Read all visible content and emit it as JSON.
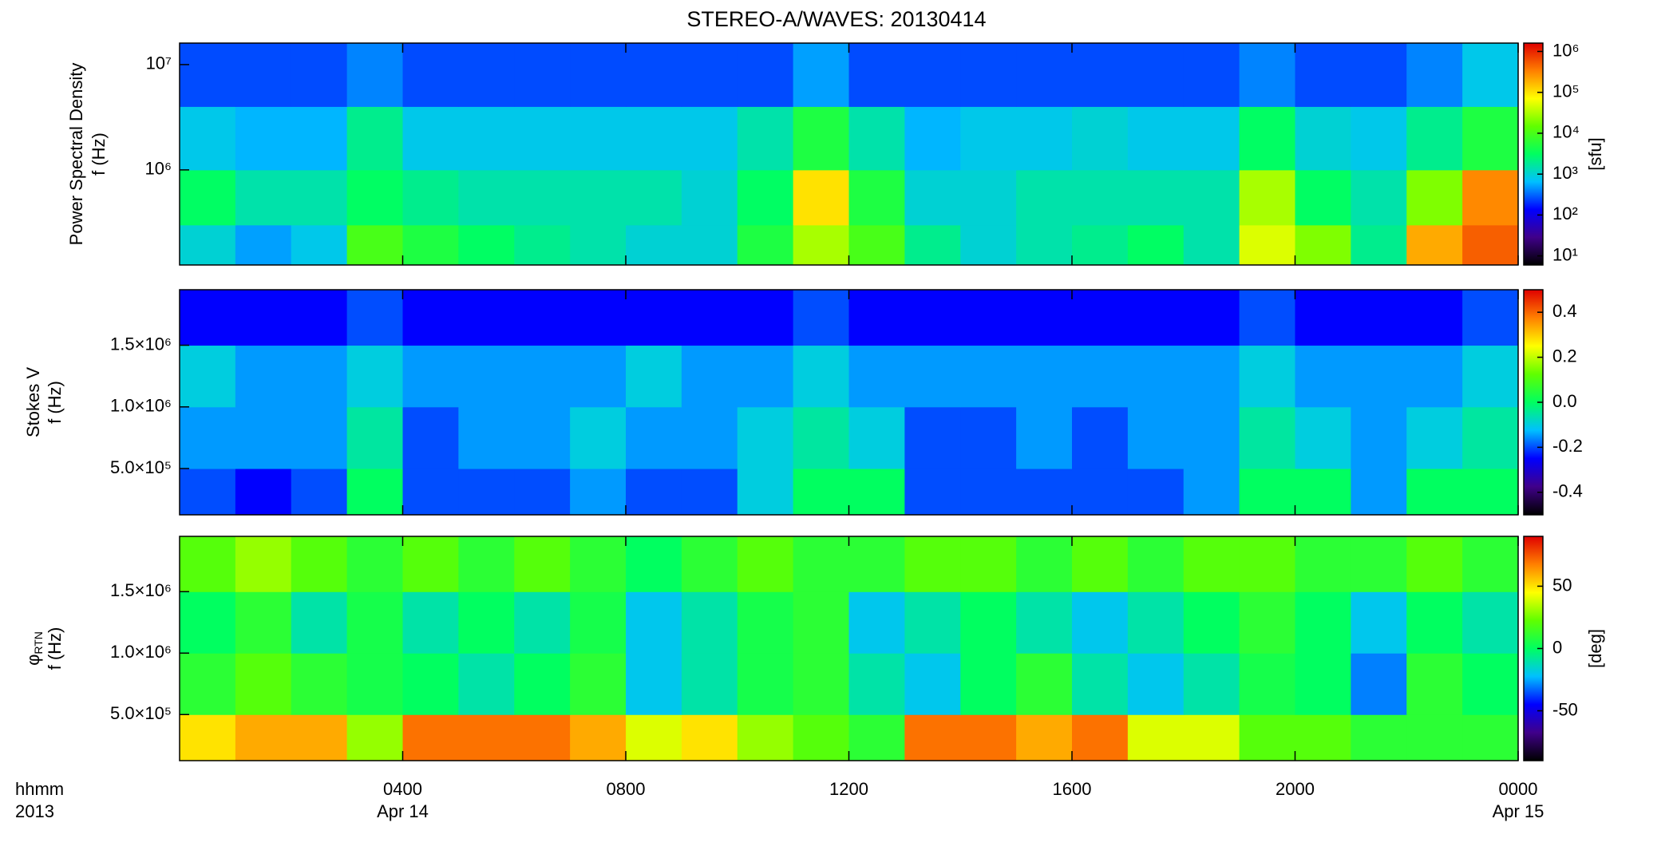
{
  "title": "STEREO-A/WAVES: 20130414",
  "colormap": [
    "#000000",
    "#40008a",
    "#0000ff",
    "#00c0ff",
    "#00ff60",
    "#60ff00",
    "#ffff00",
    "#ff8000",
    "#e00000"
  ],
  "x_axis": {
    "label": [
      "hhmm",
      "2013"
    ],
    "xlim": [
      0,
      24
    ],
    "xticks": [
      {
        "value": 4,
        "label": "0400"
      },
      {
        "value": 8,
        "label": "0800"
      },
      {
        "value": 12,
        "label": "1200"
      },
      {
        "value": 16,
        "label": "1600"
      },
      {
        "value": 20,
        "label": "2000"
      },
      {
        "value": 24,
        "label": "0000"
      }
    ],
    "date_labels": [
      {
        "value": 4,
        "label": "Apr 14"
      },
      {
        "value": 24,
        "label": "Apr 15"
      }
    ]
  },
  "chart_data": [
    {
      "type": "heatmap",
      "ylabel": [
        "Power Spectral Density",
        "f (Hz)"
      ],
      "ylog": true,
      "ylim": [
        125000,
        16000000
      ],
      "yticks": [
        {
          "value": 1000000,
          "label": "10⁶"
        },
        {
          "value": 10000000,
          "label": "10⁷"
        }
      ],
      "x_bins": [
        0,
        1,
        2,
        3,
        4,
        5,
        6,
        7,
        8,
        9,
        10,
        11,
        12,
        13,
        14,
        15,
        16,
        17,
        18,
        19,
        20,
        21,
        22,
        23,
        24
      ],
      "y_bins": [
        125000,
        300000,
        1000000,
        4000000,
        16000000
      ],
      "z": [
        [
          1000,
          500,
          800,
          10000,
          5000,
          3000,
          2000,
          1500,
          1000,
          1000,
          5000,
          30000,
          10000,
          2000,
          1000,
          1500,
          2000,
          3000,
          1500,
          50000,
          20000,
          2000,
          200000,
          500000
        ],
        [
          3000,
          1500,
          1500,
          3000,
          2000,
          1500,
          1500,
          1500,
          1500,
          1000,
          3000,
          100000,
          5000,
          1000,
          1000,
          1500,
          1500,
          1500,
          1500,
          30000,
          3000,
          1500,
          20000,
          300000
        ],
        [
          800,
          600,
          600,
          2000,
          800,
          800,
          800,
          800,
          800,
          800,
          1500,
          5000,
          1500,
          600,
          800,
          800,
          1000,
          800,
          800,
          3000,
          1000,
          800,
          2000,
          5000
        ],
        [
          250,
          250,
          250,
          400,
          250,
          250,
          250,
          250,
          250,
          250,
          250,
          500,
          250,
          250,
          250,
          250,
          250,
          250,
          250,
          400,
          250,
          250,
          400,
          800
        ]
      ],
      "clog": true,
      "clim": [
        6,
        1600000
      ],
      "cticks": [
        {
          "value": 10,
          "label": "10¹"
        },
        {
          "value": 100,
          "label": "10²"
        },
        {
          "value": 1000,
          "label": "10³"
        },
        {
          "value": 10000,
          "label": "10⁴"
        },
        {
          "value": 100000,
          "label": "10⁵"
        },
        {
          "value": 1000000,
          "label": "10⁶"
        }
      ],
      "clabel": "[sfu]"
    },
    {
      "type": "heatmap",
      "ylabel": [
        "Stokes V",
        "f (Hz)"
      ],
      "ylog": false,
      "ylim": [
        125000,
        1950000
      ],
      "yticks": [
        {
          "value": 500000,
          "label": "5.0×10⁵"
        },
        {
          "value": 1000000,
          "label": "1.0×10⁶"
        },
        {
          "value": 1500000,
          "label": "1.5×10⁶"
        }
      ],
      "x_bins": [
        0,
        1,
        2,
        3,
        4,
        5,
        6,
        7,
        8,
        9,
        10,
        11,
        12,
        13,
        14,
        15,
        16,
        17,
        18,
        19,
        20,
        21,
        22,
        23,
        24
      ],
      "y_bins": [
        125000,
        500000,
        1000000,
        1500000,
        1950000
      ],
      "z": [
        [
          -0.2,
          -0.25,
          -0.2,
          0.0,
          -0.2,
          -0.2,
          -0.2,
          -0.15,
          -0.2,
          -0.2,
          -0.1,
          0.0,
          0.0,
          -0.2,
          -0.2,
          -0.2,
          -0.2,
          -0.2,
          -0.15,
          0.0,
          0.0,
          -0.15,
          0.0,
          0.0
        ],
        [
          -0.15,
          -0.15,
          -0.15,
          -0.05,
          -0.2,
          -0.15,
          -0.15,
          -0.1,
          -0.15,
          -0.15,
          -0.1,
          -0.05,
          -0.1,
          -0.2,
          -0.2,
          -0.15,
          -0.2,
          -0.15,
          -0.15,
          -0.05,
          -0.1,
          -0.15,
          -0.1,
          -0.05
        ],
        [
          -0.1,
          -0.15,
          -0.15,
          -0.1,
          -0.15,
          -0.15,
          -0.15,
          -0.15,
          -0.1,
          -0.15,
          -0.15,
          -0.1,
          -0.15,
          -0.15,
          -0.15,
          -0.15,
          -0.15,
          -0.15,
          -0.15,
          -0.1,
          -0.15,
          -0.15,
          -0.15,
          -0.1
        ],
        [
          -0.25,
          -0.25,
          -0.25,
          -0.2,
          -0.25,
          -0.25,
          -0.25,
          -0.25,
          -0.25,
          -0.25,
          -0.25,
          -0.2,
          -0.25,
          -0.25,
          -0.25,
          -0.25,
          -0.25,
          -0.25,
          -0.25,
          -0.2,
          -0.25,
          -0.25,
          -0.25,
          -0.2
        ]
      ],
      "clog": false,
      "clim": [
        -0.5,
        0.5
      ],
      "cticks": [
        -0.4,
        -0.2,
        {
          "value": 0,
          "label": "0.0"
        },
        0.2,
        0.4
      ]
    },
    {
      "type": "heatmap",
      "ylabel": [
        {
          "text": "φ",
          "sub": "RTN"
        },
        "f (Hz)"
      ],
      "ylog": false,
      "ylim": [
        125000,
        1950000
      ],
      "yticks": [
        {
          "value": 500000,
          "label": "5.0×10⁵"
        },
        {
          "value": 1000000,
          "label": "1.0×10⁶"
        },
        {
          "value": 1500000,
          "label": "1.5×10⁶"
        }
      ],
      "x_bins": [
        0,
        1,
        2,
        3,
        4,
        5,
        6,
        7,
        8,
        9,
        10,
        11,
        12,
        13,
        14,
        15,
        16,
        17,
        18,
        19,
        20,
        21,
        22,
        23,
        24
      ],
      "y_bins": [
        125000,
        500000,
        1000000,
        1500000,
        1950000
      ],
      "z": [
        [
          50,
          60,
          60,
          30,
          70,
          70,
          70,
          60,
          40,
          50,
          30,
          20,
          10,
          70,
          70,
          60,
          70,
          40,
          40,
          20,
          20,
          10,
          10,
          10
        ],
        [
          10,
          20,
          10,
          5,
          0,
          -10,
          0,
          10,
          -20,
          -10,
          5,
          10,
          -10,
          -20,
          0,
          10,
          -10,
          -20,
          -10,
          5,
          0,
          -30,
          10,
          0
        ],
        [
          0,
          10,
          -10,
          5,
          -10,
          0,
          -10,
          5,
          -20,
          -10,
          5,
          10,
          -20,
          -10,
          0,
          -10,
          -20,
          -10,
          0,
          10,
          0,
          -20,
          0,
          -10
        ],
        [
          20,
          30,
          20,
          10,
          20,
          10,
          20,
          10,
          0,
          10,
          20,
          10,
          10,
          20,
          20,
          10,
          20,
          10,
          20,
          20,
          10,
          10,
          20,
          10
        ]
      ],
      "clog": false,
      "clim": [
        -90,
        90
      ],
      "cticks": [
        -50,
        0,
        50
      ],
      "clabel": "[deg]"
    }
  ]
}
